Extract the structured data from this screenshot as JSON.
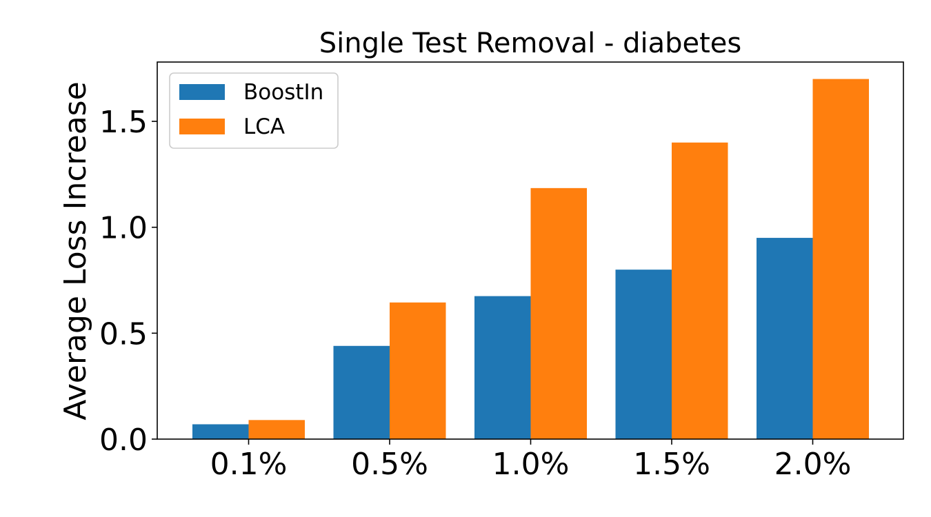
{
  "chart_data": {
    "type": "bar",
    "title": "Single Test Removal - diabetes",
    "xlabel": "",
    "ylabel": "Average Loss Increase",
    "categories": [
      "0.1%",
      "0.5%",
      "1.0%",
      "1.5%",
      "2.0%"
    ],
    "series": [
      {
        "name": "BoostIn",
        "color": "#1f77b4",
        "values": [
          0.07,
          0.44,
          0.675,
          0.8,
          0.95
        ]
      },
      {
        "name": "LCA",
        "color": "#ff7f0e",
        "values": [
          0.09,
          0.645,
          1.185,
          1.4,
          1.7
        ]
      }
    ],
    "ylim": [
      0,
      1.78
    ],
    "yticks": [
      0.0,
      0.5,
      1.0,
      1.5
    ],
    "ytick_labels": [
      "0.0",
      "0.5",
      "1.0",
      "1.5"
    ],
    "grid": false,
    "legend_position": "upper-left"
  }
}
